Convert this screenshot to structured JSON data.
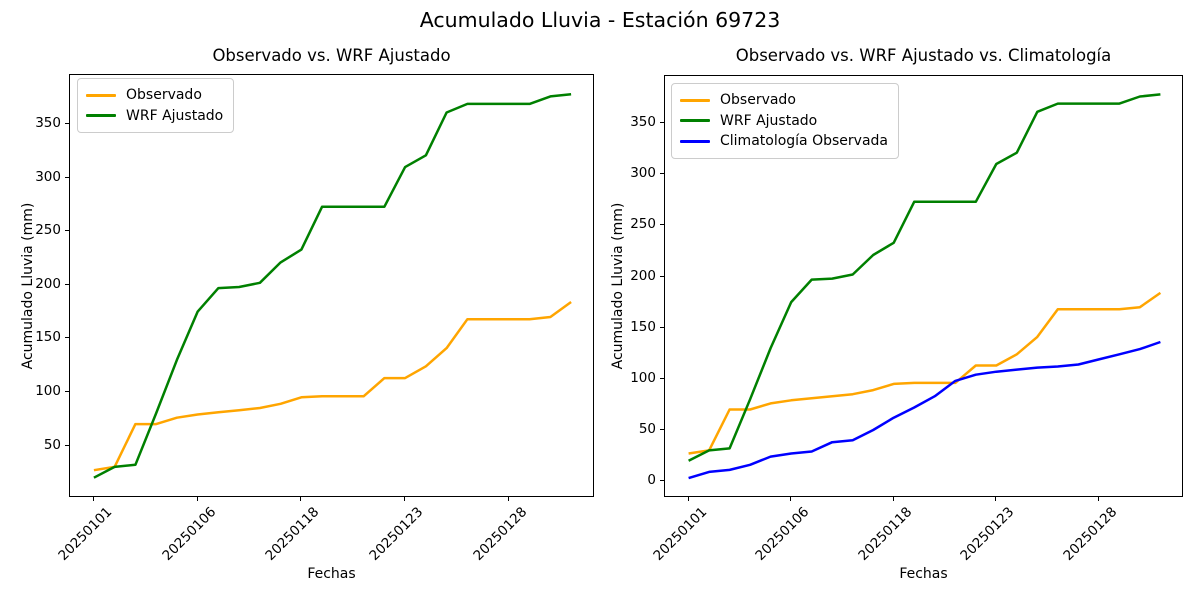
{
  "figure": {
    "suptitle": "Acumulado Lluvia - Estación 69723"
  },
  "chart_data": [
    {
      "type": "line",
      "title": "Observado vs. WRF Ajustado",
      "xlabel": "Fechas",
      "ylabel": "Acumulado Lluvia (mm)",
      "x_indices": [
        0,
        1,
        2,
        3,
        4,
        5,
        6,
        7,
        8,
        9,
        10,
        11,
        12,
        13,
        14,
        15,
        16,
        17,
        18,
        19,
        20,
        21,
        22,
        23
      ],
      "x_tick_positions": [
        0,
        5,
        10,
        15,
        20
      ],
      "x_tick_labels": [
        "20250101",
        "20250106",
        "20250118",
        "20250123",
        "20250128"
      ],
      "y_ticks": [
        50,
        100,
        150,
        200,
        250,
        300,
        350
      ],
      "xlim": [
        -1.15,
        24.15
      ],
      "ylim": [
        1,
        396
      ],
      "grid": false,
      "legend_position": "upper-left",
      "series": [
        {
          "name": "Observado",
          "color": "#FFA500",
          "values": [
            27,
            30,
            70,
            70,
            76,
            79,
            81,
            83,
            85,
            89,
            95,
            96,
            96,
            96,
            113,
            113,
            124,
            141,
            168,
            168,
            168,
            168,
            170,
            184
          ]
        },
        {
          "name": "WRF Ajustado",
          "color": "#008000",
          "values": [
            20,
            30,
            32,
            80,
            130,
            175,
            197,
            198,
            202,
            221,
            233,
            273,
            273,
            273,
            273,
            310,
            321,
            361,
            369,
            369,
            369,
            369,
            376,
            378
          ]
        }
      ]
    },
    {
      "type": "line",
      "title": "Observado vs. WRF Ajustado vs. Climatología",
      "xlabel": "Fechas",
      "ylabel": "Acumulado Lluvia (mm)",
      "x_indices": [
        0,
        1,
        2,
        3,
        4,
        5,
        6,
        7,
        8,
        9,
        10,
        11,
        12,
        13,
        14,
        15,
        16,
        17,
        18,
        19,
        20,
        21,
        22,
        23
      ],
      "x_tick_positions": [
        0,
        5,
        10,
        15,
        20
      ],
      "x_tick_labels": [
        "20250101",
        "20250106",
        "20250118",
        "20250123",
        "20250128"
      ],
      "y_ticks": [
        0,
        50,
        100,
        150,
        200,
        250,
        300,
        350
      ],
      "xlim": [
        -1.15,
        24.15
      ],
      "ylim": [
        -16.5,
        396
      ],
      "grid": false,
      "legend_position": "upper-left",
      "series": [
        {
          "name": "Observado",
          "color": "#FFA500",
          "values": [
            27,
            30,
            70,
            70,
            76,
            79,
            81,
            83,
            85,
            89,
            95,
            96,
            96,
            96,
            113,
            113,
            124,
            141,
            168,
            168,
            168,
            168,
            170,
            184
          ]
        },
        {
          "name": "WRF Ajustado",
          "color": "#008000",
          "values": [
            20,
            30,
            32,
            80,
            130,
            175,
            197,
            198,
            202,
            221,
            233,
            273,
            273,
            273,
            273,
            310,
            321,
            361,
            369,
            369,
            369,
            369,
            376,
            378
          ]
        },
        {
          "name": "Climatología Observada",
          "color": "#0000FF",
          "values": [
            3,
            9,
            11,
            16,
            24,
            27,
            29,
            38,
            40,
            50,
            62,
            72,
            83,
            98,
            104,
            107,
            109,
            111,
            112,
            114,
            119,
            124,
            129,
            136
          ]
        }
      ]
    }
  ]
}
